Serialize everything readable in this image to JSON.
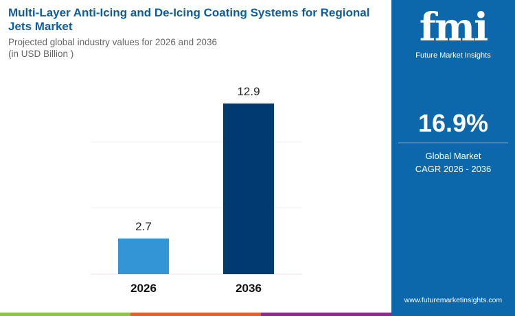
{
  "header": {
    "title": "Multi-Layer Anti-Icing and De-Icing Coating Systems for Regional Jets Market",
    "subtitle_line1": "Projected global industry values for 2026 and 2036",
    "subtitle_line2": "(in USD Billion )"
  },
  "panel": {
    "logo_mark": "fmi",
    "logo_text": "Future Market Insights",
    "cagr_value": "16.9%",
    "cagr_line1": "Global Market",
    "cagr_line2": "CAGR 2026 - 2036",
    "url": "www.futuremarketinsights.com"
  },
  "colors": {
    "bar_2026": "#3394d6",
    "bar_2036": "#003a70",
    "panel": "#0c68ab",
    "title": "#0b5d9e",
    "stripe_green": "#8dc63f",
    "stripe_orange": "#f15a24",
    "stripe_purple": "#93278f"
  },
  "chart_data": {
    "type": "bar",
    "categories": [
      "2026",
      "2036"
    ],
    "values": [
      2.7,
      12.9
    ],
    "data_labels": [
      "2.7",
      "12.9"
    ],
    "ylim": [
      0,
      13
    ],
    "grid": true,
    "unit": "USD Billion"
  }
}
